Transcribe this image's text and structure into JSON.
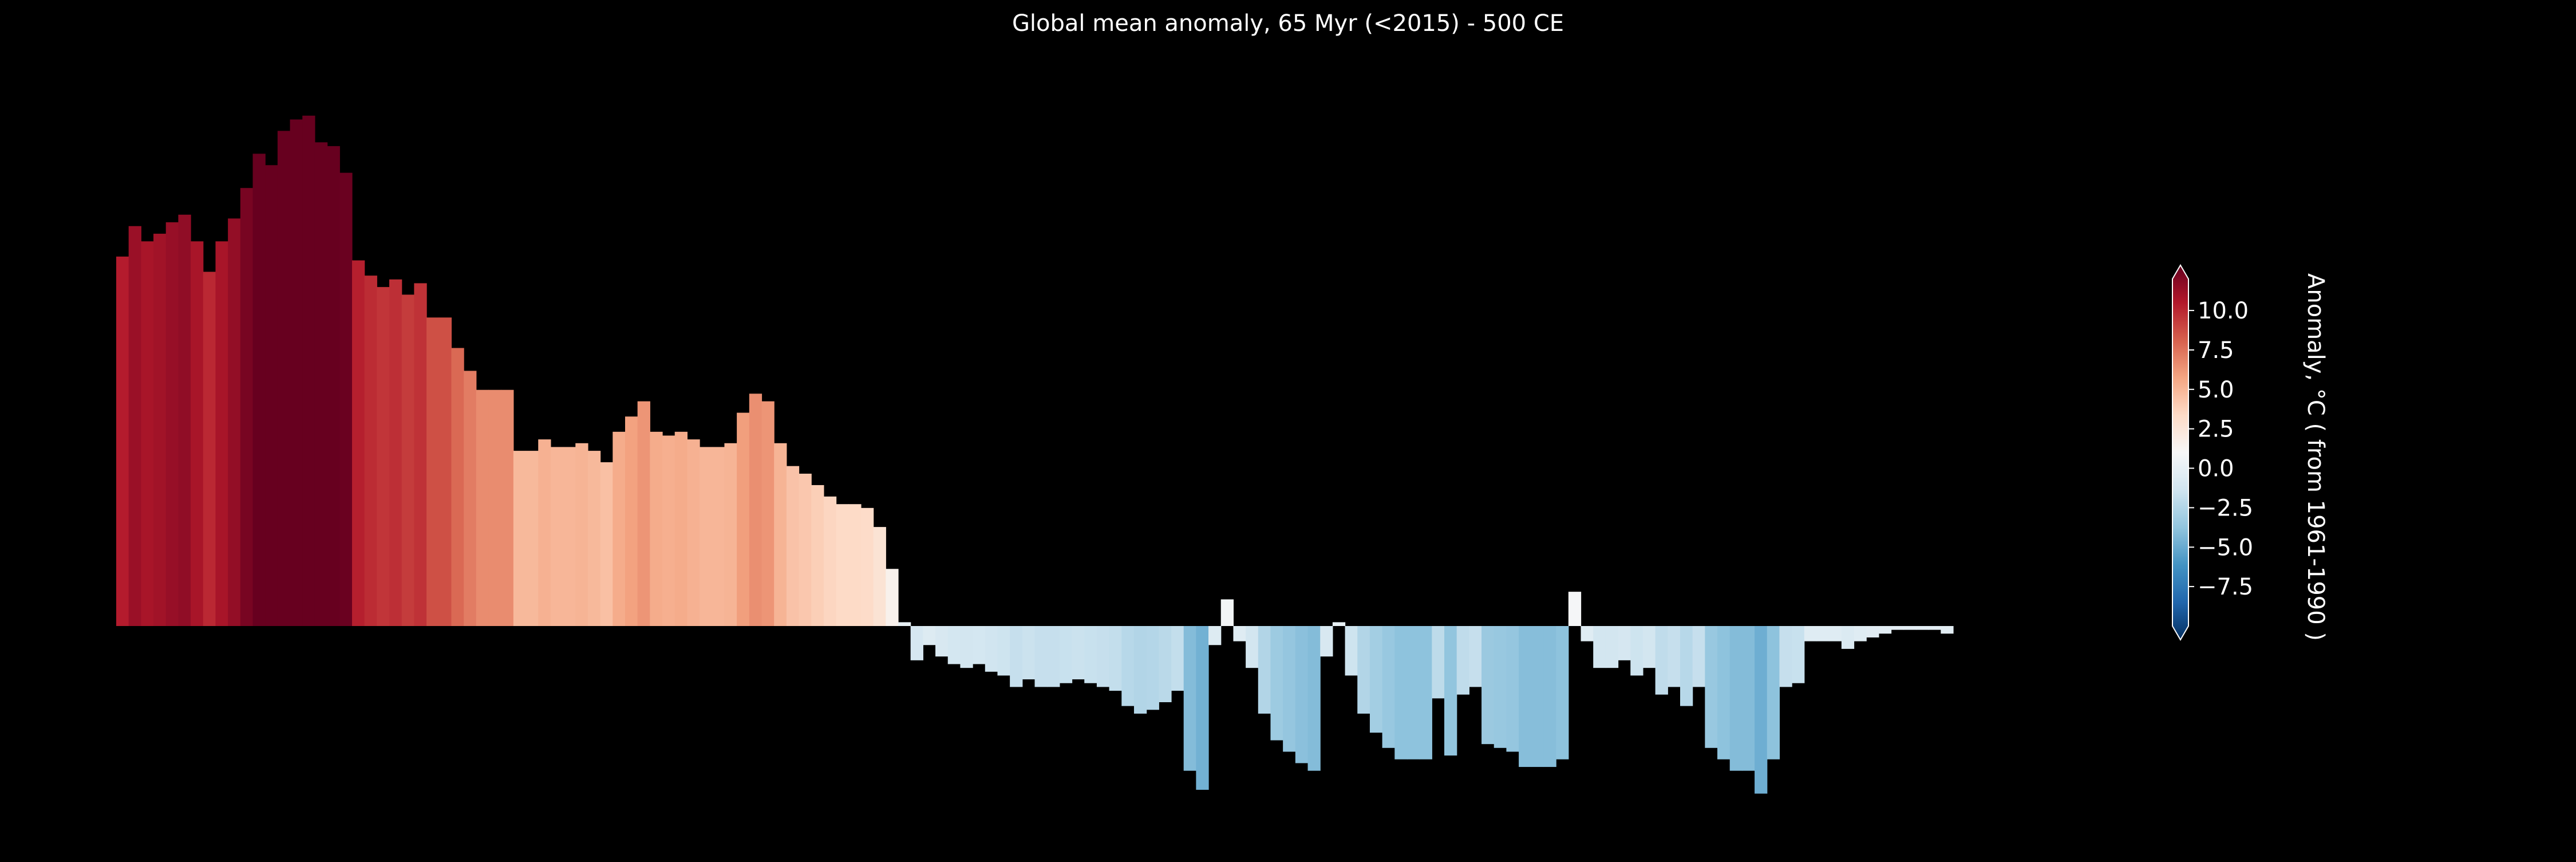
{
  "chart_data": {
    "type": "bar",
    "title": "Global mean anomaly, 65 Myr (<2015) - 500 CE",
    "xlabel": "",
    "ylabel": "",
    "ylim": [
      -4.4,
      13.5
    ],
    "grid": false,
    "legend": "none",
    "colormap": "RdBu_r",
    "color_range": [
      -10,
      12
    ],
    "background": "#000000",
    "values": [
      9.7,
      10.5,
      10.1,
      10.3,
      10.6,
      10.8,
      10.1,
      9.3,
      10.1,
      10.7,
      11.5,
      12.4,
      12.1,
      13.0,
      13.3,
      13.4,
      12.7,
      12.6,
      11.9,
      9.6,
      9.2,
      8.9,
      9.1,
      8.7,
      9.0,
      8.1,
      8.1,
      7.3,
      6.7,
      6.2,
      6.2,
      6.2,
      4.6,
      4.6,
      4.9,
      4.7,
      4.7,
      4.8,
      4.6,
      4.3,
      5.1,
      5.5,
      5.9,
      5.1,
      5.0,
      5.1,
      4.9,
      4.7,
      4.7,
      4.8,
      5.6,
      6.1,
      5.9,
      4.8,
      4.2,
      4.0,
      3.7,
      3.4,
      3.2,
      3.2,
      3.1,
      2.6,
      1.5,
      0.1,
      -0.9,
      -0.5,
      -0.8,
      -1.0,
      -1.1,
      -1.0,
      -1.2,
      -1.3,
      -1.6,
      -1.4,
      -1.6,
      -1.6,
      -1.5,
      -1.4,
      -1.5,
      -1.6,
      -1.7,
      -2.1,
      -2.3,
      -2.2,
      -2.0,
      -1.7,
      -3.8,
      -4.3,
      -0.5,
      0.7,
      -0.4,
      -1.1,
      -2.3,
      -3.0,
      -3.3,
      -3.6,
      -3.8,
      -0.8,
      0.1,
      -1.3,
      -2.3,
      -2.8,
      -3.2,
      -3.5,
      -3.5,
      -3.5,
      -1.9,
      -3.4,
      -1.8,
      -1.6,
      -3.1,
      -3.2,
      -3.3,
      -3.7,
      -3.7,
      -3.7,
      -3.5,
      0.9,
      -0.4,
      -1.1,
      -1.1,
      -0.9,
      -1.3,
      -1.1,
      -1.8,
      -1.6,
      -2.1,
      -1.6,
      -3.2,
      -3.5,
      -3.8,
      -3.8,
      -4.4,
      -3.5,
      -1.6,
      -1.5,
      -0.4,
      -0.4,
      -0.4,
      -0.6,
      -0.4,
      -0.3,
      -0.2,
      -0.1,
      -0.1,
      -0.1,
      -0.1,
      -0.2
    ],
    "colorbar": {
      "label": "Anomaly, °C ( from 1961-1990 )",
      "tick_values": [
        10.0,
        7.5,
        5.0,
        2.5,
        0.0,
        -2.5,
        -5.0,
        -7.5
      ],
      "tick_labels": [
        "10.0",
        "7.5",
        "5.0",
        "2.5",
        "0.0",
        "−2.5",
        "−5.0",
        "−7.5"
      ],
      "range": [
        -10,
        12
      ],
      "extend": "both"
    }
  }
}
